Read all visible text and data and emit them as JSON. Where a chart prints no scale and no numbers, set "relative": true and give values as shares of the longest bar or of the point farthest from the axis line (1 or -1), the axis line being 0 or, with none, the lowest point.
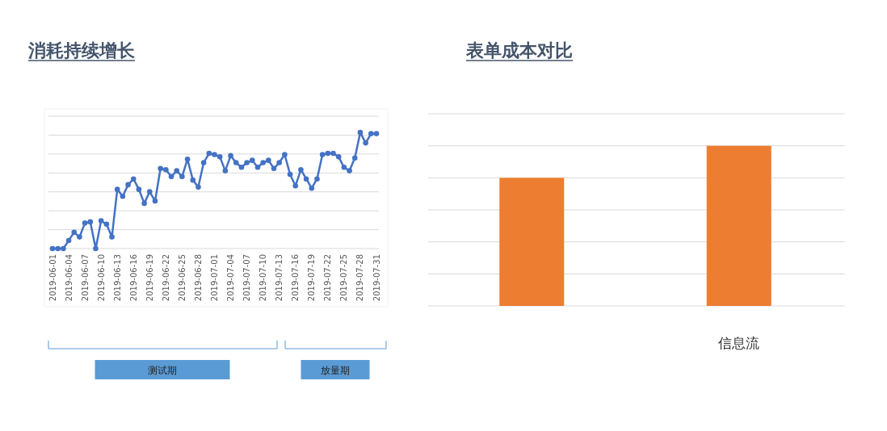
{
  "chart_data": [
    {
      "type": "line",
      "title": "消耗持续增长",
      "relative": true,
      "grid": "y",
      "marker": "circle",
      "line_style": "solid",
      "categories": [
        "2019-06-01",
        null,
        null,
        "2019-06-04",
        null,
        null,
        "2019-06-07",
        null,
        null,
        "2019-06-10",
        null,
        null,
        "2019-06-13",
        null,
        null,
        "2019-06-16",
        null,
        null,
        "2019-06-19",
        null,
        null,
        "2019-06-22",
        null,
        null,
        "2019-06-25",
        null,
        null,
        "2019-06-28",
        null,
        null,
        "2019-07-01",
        null,
        null,
        "2019-07-04",
        null,
        null,
        "2019-07-07",
        null,
        null,
        "2019-07-10",
        null,
        null,
        "2019-07-13",
        null,
        null,
        "2019-07-16",
        null,
        null,
        "2019-07-19",
        null,
        null,
        "2019-07-22",
        null,
        null,
        "2019-07-25",
        null,
        null,
        "2019-07-28",
        null,
        null,
        "2019-07-31"
      ],
      "series": [
        {
          "color": "#4472c4",
          "values": [
            0,
            0,
            0,
            0.07,
            0.14,
            0.1,
            0.22,
            0.23,
            0,
            0.24,
            0.21,
            0.1,
            0.51,
            0.45,
            0.55,
            0.6,
            0.51,
            0.39,
            0.49,
            0.41,
            0.69,
            0.68,
            0.62,
            0.67,
            0.62,
            0.77,
            0.59,
            0.53,
            0.74,
            0.82,
            0.81,
            0.79,
            0.67,
            0.8,
            0.74,
            0.7,
            0.74,
            0.76,
            0.7,
            0.74,
            0.76,
            0.69,
            0.74,
            0.81,
            0.64,
            0.54,
            0.68,
            0.6,
            0.52,
            0.6,
            0.81,
            0.82,
            0.82,
            0.79,
            0.7,
            0.67,
            0.78,
            1,
            0.91,
            0.99,
            0.99
          ]
        }
      ],
      "annotations": [
        "测试期",
        "放量期"
      ]
    },
    {
      "type": "bar",
      "title": "表单成本对比",
      "relative": true,
      "grid": "y",
      "categories": [
        null,
        "信息流"
      ],
      "series": [
        {
          "color": "#ed7d31",
          "values": [
            0.8,
            1
          ]
        }
      ]
    }
  ]
}
